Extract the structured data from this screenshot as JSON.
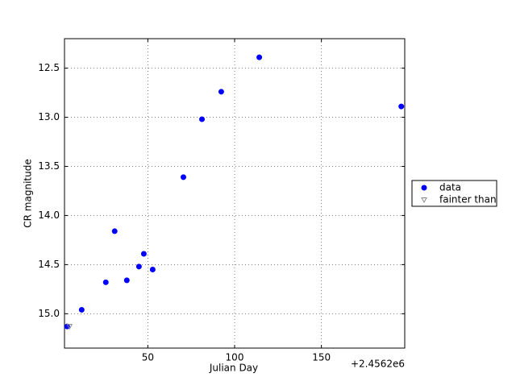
{
  "chart_data": {
    "type": "scatter",
    "x_label": "Julian Day",
    "y_label": "CR magnitude",
    "x_offset_label": "+2.4562e6",
    "xlim": [
      2,
      198
    ],
    "xticks": [
      50,
      100,
      150
    ],
    "ylim": [
      15.35,
      12.2
    ],
    "yticks": [
      {
        "value": 12.5,
        "label": "12.5"
      },
      {
        "value": 13,
        "label": "13.0"
      },
      {
        "value": 13.5,
        "label": "13.5"
      },
      {
        "value": 14,
        "label": "14.0"
      },
      {
        "value": 14.5,
        "label": "14.5"
      },
      {
        "value": 15,
        "label": "15.0"
      }
    ],
    "grid": true,
    "legend_loc": "right",
    "series": [
      {
        "name": "data",
        "color": "#0000ff",
        "marker": "circle",
        "x": [
          3.5,
          11.9,
          25.8,
          30.9,
          37.9,
          44.9,
          47.7,
          52.8,
          70.5,
          81.2,
          92.3,
          114.2,
          196
        ],
        "values": [
          15.13,
          14.96,
          14.68,
          14.16,
          14.66,
          14.52,
          14.39,
          14.55,
          13.61,
          13.02,
          12.74,
          12.39,
          12.89
        ]
      },
      {
        "name": "fainter than",
        "color": "#888888",
        "marker": "triangle-down",
        "x": [
          4.9
        ],
        "values": [
          15.13
        ]
      }
    ]
  }
}
